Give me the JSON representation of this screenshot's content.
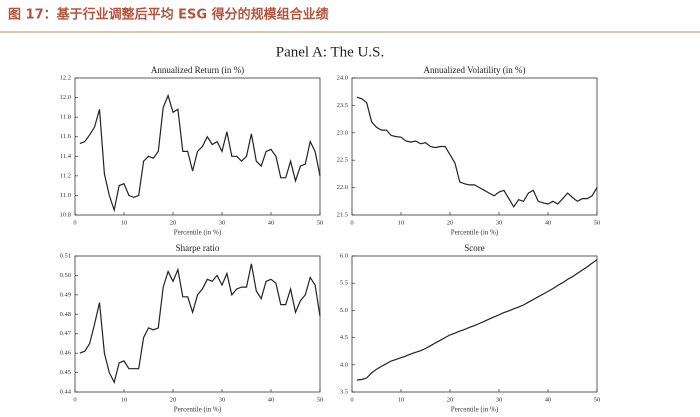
{
  "header": {
    "title": "图 17：基于行业调整后平均 ESG 得分的规模组合业绩"
  },
  "panel_title": "Panel A: The U.S.",
  "chart_data": [
    {
      "type": "line",
      "title": "Annualized Return (in %)",
      "x_label": "Percentile (in %)",
      "color": "#222222",
      "x": [
        1,
        2,
        3,
        4,
        5,
        6,
        7,
        8,
        9,
        10,
        11,
        12,
        13,
        14,
        15,
        16,
        17,
        18,
        19,
        20,
        21,
        22,
        23,
        24,
        25,
        26,
        27,
        28,
        29,
        30,
        31,
        32,
        33,
        34,
        35,
        36,
        37,
        38,
        39,
        40,
        41,
        42,
        43,
        44,
        45,
        46,
        47,
        48,
        49,
        50
      ],
      "values": [
        11.53,
        11.55,
        11.62,
        11.7,
        11.88,
        11.22,
        11.0,
        10.85,
        11.1,
        11.12,
        11.0,
        10.98,
        11.0,
        11.35,
        11.4,
        11.38,
        11.45,
        11.9,
        12.02,
        11.85,
        11.88,
        11.45,
        11.45,
        11.25,
        11.45,
        11.5,
        11.6,
        11.52,
        11.55,
        11.45,
        11.65,
        11.4,
        11.4,
        11.35,
        11.4,
        11.63,
        11.35,
        11.3,
        11.45,
        11.47,
        11.4,
        11.18,
        11.18,
        11.35,
        11.15,
        11.3,
        11.32,
        11.55,
        11.45,
        11.2
      ],
      "xlim": [
        0,
        50
      ],
      "xticks": [
        0,
        10,
        20,
        30,
        40,
        50
      ],
      "ylim": [
        10.8,
        12.2
      ],
      "yticks": [
        10.8,
        {
          "value": 11.0,
          "label": "11.0"
        },
        11.2,
        11.4,
        11.6,
        11.8,
        {
          "value": 12.0,
          "label": "12.0"
        },
        12.2
      ]
    },
    {
      "type": "line",
      "title": "Annualized Volatility (in %)",
      "x_label": "Percentile (in %)",
      "color": "#222222",
      "x": [
        1,
        2,
        3,
        4,
        5,
        6,
        7,
        8,
        9,
        10,
        11,
        12,
        13,
        14,
        15,
        16,
        17,
        18,
        19,
        20,
        21,
        22,
        23,
        24,
        25,
        26,
        27,
        28,
        29,
        30,
        31,
        32,
        33,
        34,
        35,
        36,
        37,
        38,
        39,
        40,
        41,
        42,
        43,
        44,
        45,
        46,
        47,
        48,
        49,
        50
      ],
      "values": [
        23.65,
        23.62,
        23.55,
        23.2,
        23.1,
        23.05,
        23.05,
        22.95,
        22.93,
        22.92,
        22.85,
        22.83,
        22.85,
        22.8,
        22.82,
        22.75,
        22.73,
        22.75,
        22.75,
        22.6,
        22.45,
        22.1,
        22.07,
        22.05,
        22.05,
        22.0,
        21.95,
        21.9,
        21.85,
        21.92,
        21.95,
        21.8,
        21.65,
        21.78,
        21.75,
        21.9,
        21.95,
        21.75,
        21.72,
        21.7,
        21.75,
        21.7,
        21.8,
        21.9,
        21.82,
        21.75,
        21.8,
        21.8,
        21.85,
        22.0
      ],
      "xlim": [
        0,
        50
      ],
      "xticks": [
        0,
        10,
        20,
        30,
        40,
        50
      ],
      "ylim": [
        21.5,
        24.0
      ],
      "yticks": [
        21.5,
        {
          "value": 22.0,
          "label": "22.0"
        },
        22.5,
        {
          "value": 23.0,
          "label": "23.0"
        },
        23.5,
        {
          "value": 24.0,
          "label": "24.0"
        }
      ]
    },
    {
      "type": "line",
      "title": "Sharpe ratio",
      "x_label": "Percentile (in %)",
      "color": "#222222",
      "x": [
        1,
        2,
        3,
        4,
        5,
        6,
        7,
        8,
        9,
        10,
        11,
        12,
        13,
        14,
        15,
        16,
        17,
        18,
        19,
        20,
        21,
        22,
        23,
        24,
        25,
        26,
        27,
        28,
        29,
        30,
        31,
        32,
        33,
        34,
        35,
        36,
        37,
        38,
        39,
        40,
        41,
        42,
        43,
        44,
        45,
        46,
        47,
        48,
        49,
        50
      ],
      "values": [
        0.46,
        0.461,
        0.465,
        0.475,
        0.486,
        0.46,
        0.45,
        0.445,
        0.455,
        0.456,
        0.452,
        0.452,
        0.452,
        0.468,
        0.473,
        0.472,
        0.473,
        0.494,
        0.502,
        0.497,
        0.503,
        0.489,
        0.489,
        0.481,
        0.49,
        0.493,
        0.498,
        0.497,
        0.5,
        0.495,
        0.501,
        0.49,
        0.493,
        0.494,
        0.494,
        0.506,
        0.492,
        0.488,
        0.497,
        0.498,
        0.496,
        0.485,
        0.485,
        0.493,
        0.481,
        0.487,
        0.49,
        0.499,
        0.495,
        0.479
      ],
      "xlim": [
        0,
        50
      ],
      "xticks": [
        0,
        10,
        20,
        30,
        40,
        50
      ],
      "ylim": [
        0.44,
        0.51
      ],
      "yticks": [
        0.44,
        0.45,
        0.46,
        0.47,
        0.48,
        0.49,
        {
          "value": 0.5,
          "label": "0.50"
        },
        0.51
      ]
    },
    {
      "type": "line",
      "title": "Score",
      "x_label": "Percentile (in %)",
      "color": "#222222",
      "x": [
        1,
        2,
        3,
        4,
        5,
        6,
        7,
        8,
        9,
        10,
        11,
        12,
        13,
        14,
        15,
        16,
        17,
        18,
        19,
        20,
        21,
        22,
        23,
        24,
        25,
        26,
        27,
        28,
        29,
        30,
        31,
        32,
        33,
        34,
        35,
        36,
        37,
        38,
        39,
        40,
        41,
        42,
        43,
        44,
        45,
        46,
        47,
        48,
        49,
        50
      ],
      "values": [
        3.72,
        3.73,
        3.76,
        3.85,
        3.92,
        3.97,
        4.02,
        4.07,
        4.1,
        4.13,
        4.16,
        4.2,
        4.23,
        4.26,
        4.3,
        4.35,
        4.4,
        4.45,
        4.5,
        4.55,
        4.58,
        4.62,
        4.65,
        4.69,
        4.72,
        4.76,
        4.8,
        4.84,
        4.88,
        4.92,
        4.96,
        4.99,
        5.03,
        5.06,
        5.1,
        5.15,
        5.2,
        5.25,
        5.3,
        5.35,
        5.4,
        5.46,
        5.51,
        5.57,
        5.62,
        5.68,
        5.74,
        5.8,
        5.87,
        5.93
      ],
      "xlim": [
        0,
        50
      ],
      "xticks": [
        0,
        10,
        20,
        30,
        40,
        50
      ],
      "ylim": [
        3.5,
        6.0
      ],
      "yticks": [
        3.5,
        {
          "value": 4.0,
          "label": "4.0"
        },
        4.5,
        {
          "value": 5.0,
          "label": "5.0"
        },
        5.5,
        {
          "value": 6.0,
          "label": "6.0"
        }
      ]
    }
  ]
}
